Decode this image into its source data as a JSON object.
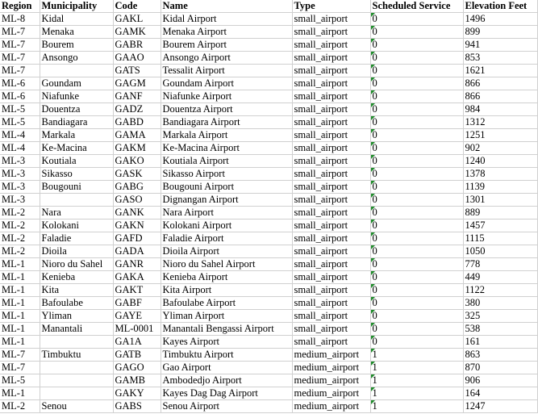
{
  "sheet": {
    "headers": [
      "Region",
      "Municipality",
      "Code",
      "Name",
      "Type",
      "Scheduled Service",
      "Elevation Feet"
    ],
    "rows": [
      [
        "ML-8",
        "Kidal",
        "GAKL",
        "Kidal Airport",
        "small_airport",
        "0",
        "1496"
      ],
      [
        "ML-7",
        "Menaka",
        "GAMK",
        "Menaka Airport",
        "small_airport",
        "0",
        "899"
      ],
      [
        "ML-7",
        "Bourem",
        "GABR",
        "Bourem Airport",
        "small_airport",
        "0",
        "941"
      ],
      [
        "ML-7",
        "Ansongo",
        "GAAO",
        "Ansongo Airport",
        "small_airport",
        "0",
        "853"
      ],
      [
        "ML-7",
        "",
        "GATS",
        "Tessalit Airport",
        "small_airport",
        "0",
        "1621"
      ],
      [
        "ML-6",
        "Goundam",
        "GAGM",
        "Goundam Airport",
        "small_airport",
        "0",
        "866"
      ],
      [
        "ML-6",
        "Niafunke",
        "GANF",
        "Niafunke Airport",
        "small_airport",
        "0",
        "866"
      ],
      [
        "ML-5",
        "Douentza",
        "GADZ",
        "Douentza Airport",
        "small_airport",
        "0",
        "984"
      ],
      [
        "ML-5",
        "Bandiagara",
        "GABD",
        "Bandiagara Airport",
        "small_airport",
        "0",
        "1312"
      ],
      [
        "ML-4",
        "Markala",
        "GAMA",
        "Markala Airport",
        "small_airport",
        "0",
        "1251"
      ],
      [
        "ML-4",
        "Ke-Macina",
        "GAKM",
        "Ke-Macina Airport",
        "small_airport",
        "0",
        "902"
      ],
      [
        "ML-3",
        "Koutiala",
        "GAKO",
        "Koutiala Airport",
        "small_airport",
        "0",
        "1240"
      ],
      [
        "ML-3",
        "Sikasso",
        "GASK",
        "Sikasso Airport",
        "small_airport",
        "0",
        "1378"
      ],
      [
        "ML-3",
        "Bougouni",
        "GABG",
        "Bougouni Airport",
        "small_airport",
        "0",
        "1139"
      ],
      [
        "ML-3",
        "",
        "GASO",
        "Dignangan Airport",
        "small_airport",
        "0",
        "1301"
      ],
      [
        "ML-2",
        "Nara",
        "GANK",
        "Nara Airport",
        "small_airport",
        "0",
        "889"
      ],
      [
        "ML-2",
        "Kolokani",
        "GAKN",
        "Kolokani Airport",
        "small_airport",
        "0",
        "1457"
      ],
      [
        "ML-2",
        "Faladie",
        "GAFD",
        "Faladie Airport",
        "small_airport",
        "0",
        "1115"
      ],
      [
        "ML-2",
        "Dioila",
        "GADA",
        "Dioila Airport",
        "small_airport",
        "0",
        "1050"
      ],
      [
        "ML-1",
        "Nioro du Sahel",
        "GANR",
        "Nioro du Sahel Airport",
        "small_airport",
        "0",
        "778"
      ],
      [
        "ML-1",
        "Kenieba",
        "GAKA",
        "Kenieba Airport",
        "small_airport",
        "0",
        "449"
      ],
      [
        "ML-1",
        "Kita",
        "GAKT",
        "Kita Airport",
        "small_airport",
        "0",
        "1122"
      ],
      [
        "ML-1",
        "Bafoulabe",
        "GABF",
        "Bafoulabe Airport",
        "small_airport",
        "0",
        "380"
      ],
      [
        "ML-1",
        "Yliman",
        "GAYE",
        "Yliman Airport",
        "small_airport",
        "0",
        "325"
      ],
      [
        "ML-1",
        "Manantali",
        "ML-0001",
        "Manantali Bengassi Airport",
        "small_airport",
        "0",
        "538"
      ],
      [
        "ML-1",
        "",
        "GA1A",
        "Kayes Airport",
        "small_airport",
        "0",
        "161"
      ],
      [
        "ML-7",
        "Timbuktu",
        "GATB",
        "Timbuktu Airport",
        "medium_airport",
        "1",
        "863"
      ],
      [
        "ML-7",
        "",
        "GAGO",
        "Gao Airport",
        "medium_airport",
        "1",
        "870"
      ],
      [
        "ML-5",
        "",
        "GAMB",
        "Ambodedjo Airport",
        "medium_airport",
        "1",
        "906"
      ],
      [
        "ML-1",
        "",
        "GAKY",
        "Kayes Dag Dag Airport",
        "medium_airport",
        "1",
        "164"
      ],
      [
        "ML-2",
        "Senou",
        "GABS",
        "Senou Airport",
        "medium_airport",
        "1",
        "1247"
      ]
    ],
    "flag_color": "#1e8a2a"
  }
}
